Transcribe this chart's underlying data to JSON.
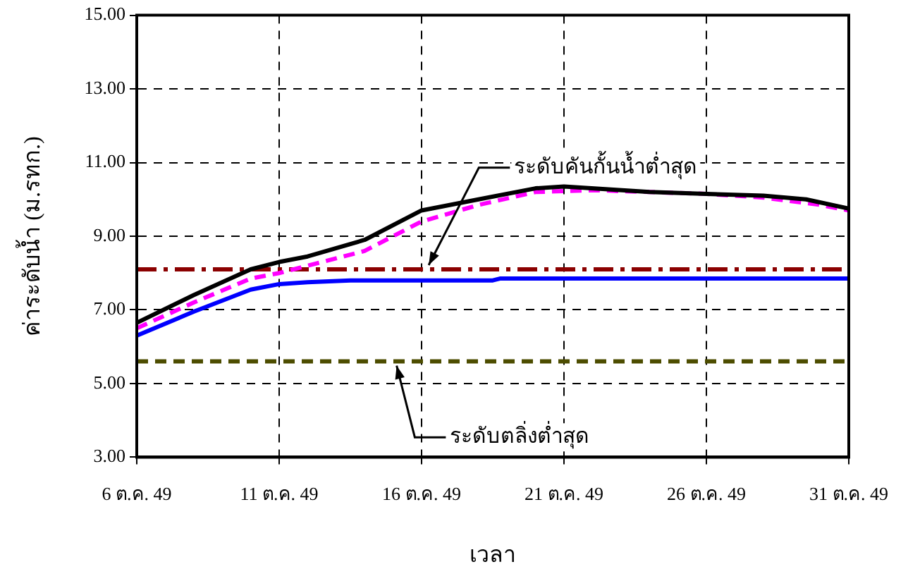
{
  "chart_data": {
    "type": "line",
    "xlabel": "เวลา",
    "ylabel": "ค่าระดับน้ำ (ม.รทก.)",
    "xlim": [
      "--10-06",
      "--10-31"
    ],
    "xticks": [
      {
        "value": "--10-06",
        "label": "6 ต.ค. 49"
      },
      {
        "value": "--10-11",
        "label": "11 ต.ค. 49"
      },
      {
        "value": "--10-16",
        "label": "16 ต.ค. 49"
      },
      {
        "value": "--10-21",
        "label": "21 ต.ค. 49"
      },
      {
        "value": "--10-26",
        "label": "26 ต.ค. 49"
      },
      {
        "value": "--10-31",
        "label": "31 ต.ค. 49"
      }
    ],
    "ylim": [
      3,
      15
    ],
    "yticks": [
      {
        "value": 3,
        "label": "3.00"
      },
      {
        "value": 5,
        "label": "5.00"
      },
      {
        "value": 7,
        "label": "7.00"
      },
      {
        "value": 9,
        "label": "9.00"
      },
      {
        "value": 11,
        "label": "11.00"
      },
      {
        "value": 13,
        "label": "13.00"
      },
      {
        "value": 15,
        "label": "15.00"
      }
    ],
    "grid": true,
    "marker": "none",
    "series": [
      {
        "color": "#000000",
        "line_style": "solid",
        "x": [
          "--10-06",
          "--10-08",
          "--10-10",
          "--10-11",
          "--10-12",
          "--10-14",
          "--10-16",
          "--10-18",
          "--10-20",
          "--10-21",
          "--10-24",
          "--10-26",
          "--10-28",
          "--10-29T12:00",
          "--10-31"
        ],
        "values": [
          6.65,
          7.4,
          8.1,
          8.3,
          8.45,
          8.9,
          9.7,
          10.0,
          10.3,
          10.35,
          10.2,
          10.15,
          10.1,
          10.0,
          9.75
        ]
      },
      {
        "color": "#ff00ff",
        "line_style": "dashed",
        "x": [
          "--10-06",
          "--10-08",
          "--10-10",
          "--10-11",
          "--10-12",
          "--10-14",
          "--10-16",
          "--10-18",
          "--10-20",
          "--10-22",
          "--10-24",
          "--10-26",
          "--10-28",
          "--10-30",
          "--10-31"
        ],
        "values": [
          6.5,
          7.2,
          7.85,
          8.0,
          8.2,
          8.6,
          9.4,
          9.85,
          10.2,
          10.25,
          10.2,
          10.15,
          10.05,
          9.85,
          9.7
        ]
      },
      {
        "color": "#0000ff",
        "line_style": "solid",
        "x": [
          "--10-06",
          "--10-08",
          "--10-10",
          "--10-11",
          "--10-12",
          "--10-13T12:00",
          "--10-18T12:00",
          "--10-18T18:00",
          "--10-25",
          "--10-31"
        ],
        "values": [
          6.3,
          6.95,
          7.55,
          7.7,
          7.75,
          7.8,
          7.8,
          7.85,
          7.85,
          7.85
        ]
      }
    ],
    "ref_lines": [
      {
        "axis": "y",
        "value": 8.1,
        "label": "ระดับคันกั้นน้ำต่ำสุด",
        "color": "#8b0000",
        "line_style": "dashdot"
      },
      {
        "axis": "y",
        "value": 5.6,
        "label": "ระดับตลิ่งต่ำสุด",
        "color": "#4d4d00",
        "line_style": "dashed"
      }
    ]
  }
}
